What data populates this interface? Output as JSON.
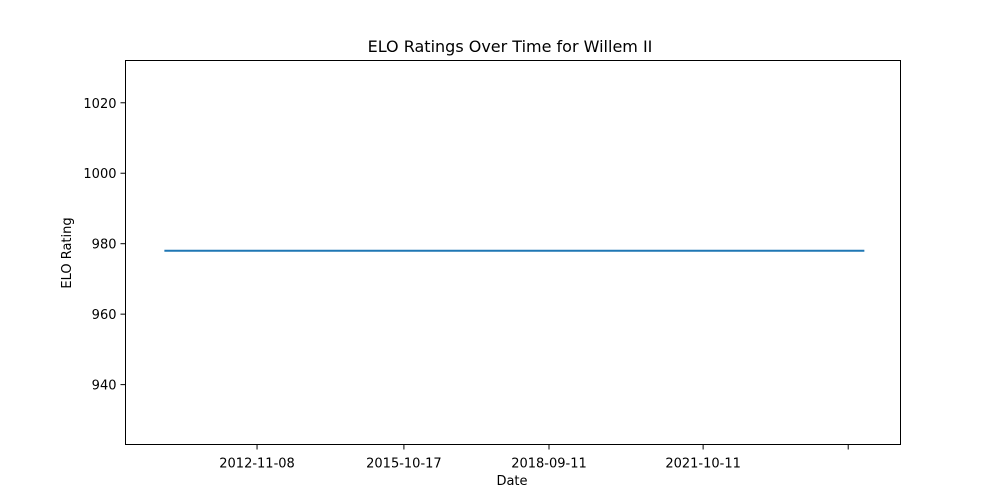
{
  "chart_data": {
    "type": "line",
    "title": "ELO Ratings Over Time for Willem II",
    "xlabel": "Date",
    "ylabel": "ELO Rating",
    "x_tick_labels": [
      "2012-11-08",
      "2015-10-17",
      "2018-09-11",
      "2021-10-11",
      ""
    ],
    "y_tick_labels": [
      "940",
      "960",
      "980",
      "1000",
      "1020"
    ],
    "ylim": [
      923,
      1032
    ],
    "y_ticks": [
      940,
      960,
      980,
      1000,
      1020
    ],
    "xlim": [
      "2010-03-23",
      "2025-09-22"
    ],
    "x_ticks": [
      "2012-11-08",
      "2015-10-17",
      "2018-09-11",
      "2021-10-11",
      "2024-09-05"
    ],
    "grid": false,
    "series": [
      {
        "color": "#1f77b4",
        "x": [
          "2011-01-01",
          "2025-01-01"
        ],
        "y": [
          978,
          978
        ]
      }
    ]
  }
}
